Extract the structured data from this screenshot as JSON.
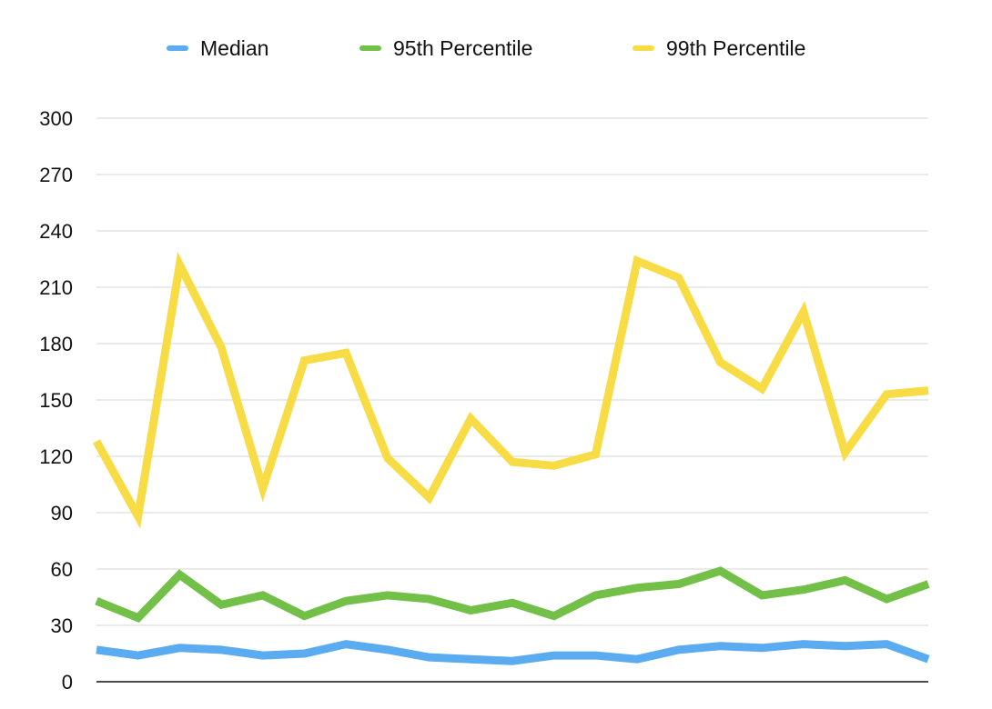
{
  "chart_data": {
    "type": "line",
    "title": "",
    "xlabel": "",
    "ylabel": "",
    "ylim": [
      0,
      300
    ],
    "yticks": [
      0,
      30,
      60,
      90,
      120,
      150,
      180,
      210,
      240,
      270,
      300
    ],
    "grid": true,
    "legend_position": "top",
    "x": [
      1,
      2,
      3,
      4,
      5,
      6,
      7,
      8,
      9,
      10,
      11,
      12,
      13,
      14,
      15,
      16,
      17,
      18,
      19,
      20,
      21
    ],
    "series": [
      {
        "name": "Median",
        "color": "#5aabf0",
        "values": [
          17,
          14,
          18,
          17,
          14,
          15,
          20,
          17,
          13,
          12,
          11,
          14,
          14,
          12,
          17,
          19,
          18,
          20,
          19,
          20,
          12
        ]
      },
      {
        "name": "95th Percentile",
        "color": "#72c047",
        "values": [
          43,
          34,
          57,
          41,
          46,
          35,
          43,
          46,
          44,
          38,
          42,
          35,
          46,
          50,
          52,
          59,
          46,
          49,
          54,
          44,
          52
        ]
      },
      {
        "name": "99th Percentile",
        "color": "#f8dc45",
        "values": [
          128,
          88,
          222,
          178,
          103,
          171,
          175,
          119,
          98,
          140,
          117,
          115,
          121,
          224,
          215,
          170,
          156,
          197,
          122,
          153,
          155
        ]
      }
    ]
  }
}
